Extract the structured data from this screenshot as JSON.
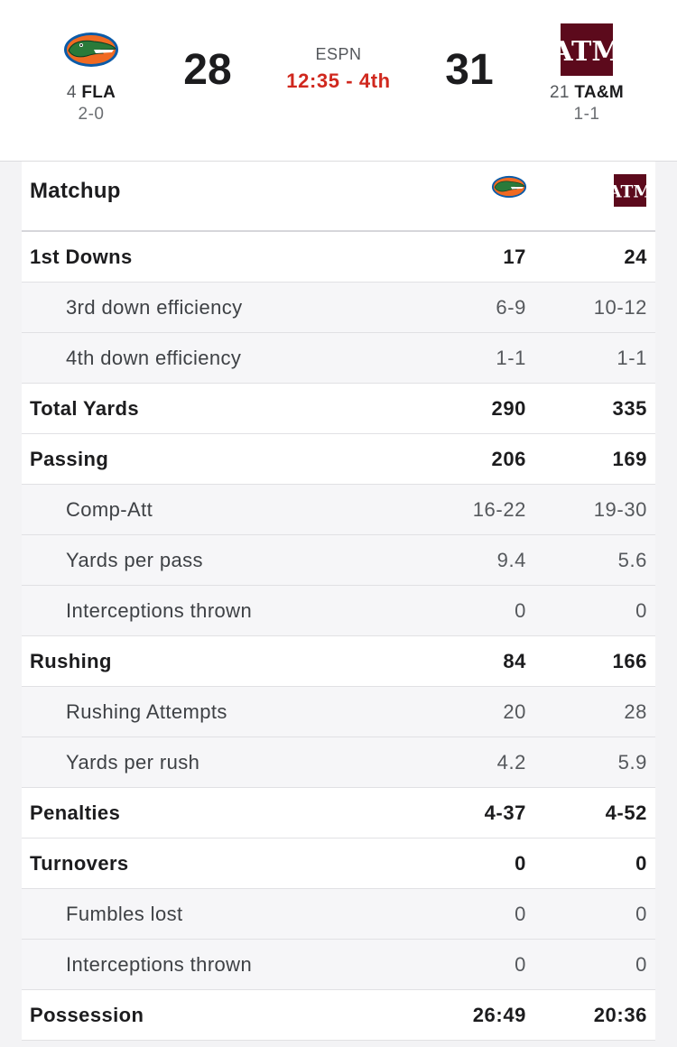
{
  "game": {
    "network": "ESPN",
    "clock": "12:35 - 4th"
  },
  "away": {
    "rank": "4",
    "abbr": "FLA",
    "record": "2-0",
    "score": "28",
    "logo_icon": "florida-gator-logo-icon",
    "colors": {
      "primary": "#0b5ba8",
      "accent": "#f06a22",
      "gator": "#2a7a3a"
    }
  },
  "home": {
    "rank": "21",
    "abbr": "TA&M",
    "record": "1-1",
    "score": "31",
    "logo_icon": "texas-am-logo-icon",
    "colors": {
      "primary": "#5c0a1c"
    }
  },
  "matchup": {
    "title": "Matchup"
  },
  "stats": [
    {
      "label": "1st Downs",
      "away": "17",
      "home": "24",
      "type": "main"
    },
    {
      "label": "3rd down efficiency",
      "away": "6-9",
      "home": "10-12",
      "type": "sub"
    },
    {
      "label": "4th down efficiency",
      "away": "1-1",
      "home": "1-1",
      "type": "sub"
    },
    {
      "label": "Total Yards",
      "away": "290",
      "home": "335",
      "type": "main"
    },
    {
      "label": "Passing",
      "away": "206",
      "home": "169",
      "type": "main"
    },
    {
      "label": "Comp-Att",
      "away": "16-22",
      "home": "19-30",
      "type": "sub"
    },
    {
      "label": "Yards per pass",
      "away": "9.4",
      "home": "5.6",
      "type": "sub"
    },
    {
      "label": "Interceptions thrown",
      "away": "0",
      "home": "0",
      "type": "sub"
    },
    {
      "label": "Rushing",
      "away": "84",
      "home": "166",
      "type": "main"
    },
    {
      "label": "Rushing Attempts",
      "away": "20",
      "home": "28",
      "type": "sub"
    },
    {
      "label": "Yards per rush",
      "away": "4.2",
      "home": "5.9",
      "type": "sub"
    },
    {
      "label": "Penalties",
      "away": "4-37",
      "home": "4-52",
      "type": "main"
    },
    {
      "label": "Turnovers",
      "away": "0",
      "home": "0",
      "type": "main"
    },
    {
      "label": "Fumbles lost",
      "away": "0",
      "home": "0",
      "type": "sub"
    },
    {
      "label": "Interceptions thrown",
      "away": "0",
      "home": "0",
      "type": "sub"
    },
    {
      "label": "Possession",
      "away": "26:49",
      "home": "20:36",
      "type": "main"
    }
  ]
}
